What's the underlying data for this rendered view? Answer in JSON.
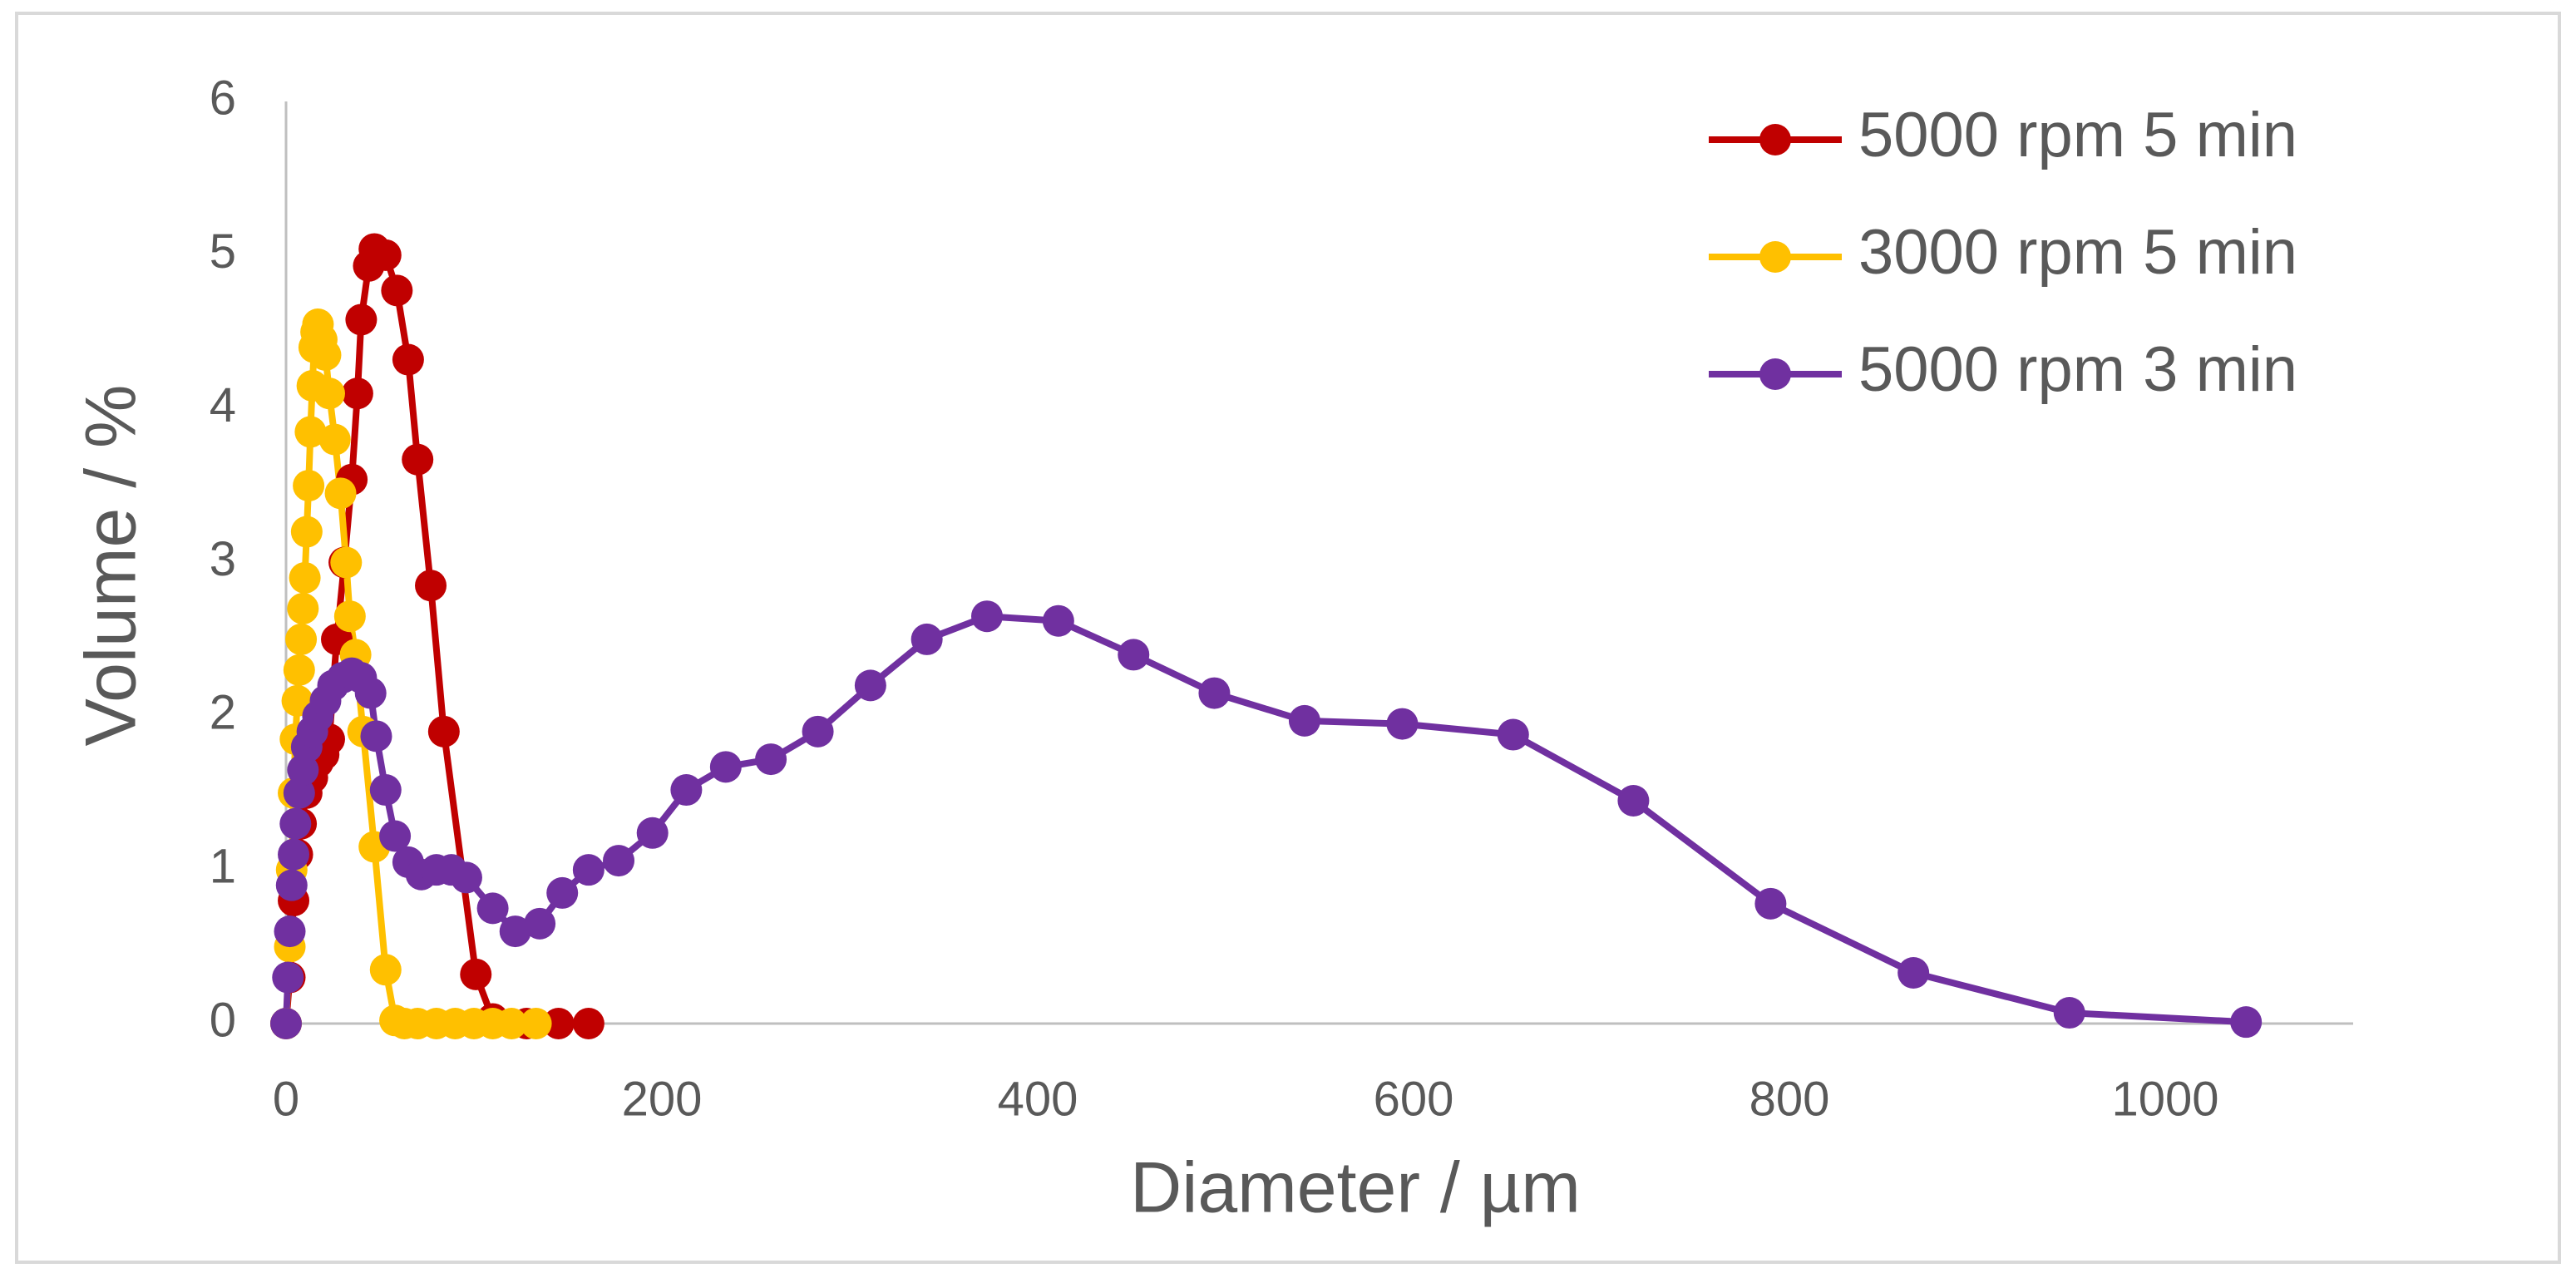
{
  "chart_data": {
    "type": "scatter-line",
    "x_label": "Diameter / µm",
    "y_label": "Volume / %",
    "xlim": [
      0,
      1100
    ],
    "xticks": [
      0,
      200,
      400,
      600,
      800,
      1000
    ],
    "ylim": [
      0,
      6
    ],
    "yticks": [
      0,
      1,
      2,
      3,
      4,
      5,
      6
    ],
    "grid": false,
    "legend": "top-right",
    "series": [
      {
        "name": "5000 rpm 5 min",
        "color": "#c00000",
        "x": [
          0,
          2,
          4,
          6,
          8,
          11,
          14,
          17,
          20,
          23,
          27,
          31,
          35,
          38,
          40,
          44,
          47,
          53,
          59,
          65,
          70,
          77,
          84,
          101,
          110,
          128,
          145,
          161
        ],
        "values": [
          0,
          0.3,
          0.8,
          1.1,
          1.3,
          1.5,
          1.6,
          1.7,
          1.75,
          1.85,
          2.5,
          3.0,
          3.54,
          4.1,
          4.58,
          4.93,
          5.04,
          5.0,
          4.77,
          4.32,
          3.67,
          2.85,
          1.9,
          0.32,
          0.03,
          0,
          0,
          0
        ]
      },
      {
        "name": "3000 rpm 5 min",
        "color": "#ffc000",
        "x": [
          0,
          2,
          3,
          4,
          5,
          6,
          7,
          8,
          9,
          10,
          11,
          12,
          13,
          14,
          15,
          16,
          17,
          19,
          21,
          23,
          26,
          29,
          32,
          34,
          37,
          41,
          47,
          53,
          58,
          63,
          70,
          80,
          90,
          100,
          110,
          120,
          133
        ],
        "values": [
          0,
          0.5,
          1.0,
          1.5,
          1.85,
          2.1,
          2.3,
          2.5,
          2.7,
          2.9,
          3.2,
          3.5,
          3.85,
          4.15,
          4.4,
          4.5,
          4.55,
          4.45,
          4.35,
          4.1,
          3.8,
          3.45,
          3.0,
          2.65,
          2.4,
          1.9,
          1.15,
          0.35,
          0.02,
          0,
          0,
          0,
          0,
          0,
          0,
          0,
          0
        ]
      },
      {
        "name": "5000 rpm 3 min",
        "color": "#7030a0",
        "x": [
          0,
          1,
          2,
          3,
          4,
          5,
          7,
          9,
          11,
          14,
          17,
          21,
          25,
          30,
          35,
          40,
          45,
          48,
          53,
          58,
          65,
          72,
          80,
          88,
          96,
          110,
          122,
          135,
          147,
          161,
          177,
          195,
          213,
          234,
          258,
          283,
          311,
          341,
          373,
          411,
          451,
          494,
          542,
          594,
          653,
          717,
          790,
          866,
          949,
          1043
        ],
        "values": [
          0,
          0.3,
          0.6,
          0.9,
          1.1,
          1.3,
          1.5,
          1.65,
          1.8,
          1.9,
          2.0,
          2.1,
          2.2,
          2.25,
          2.28,
          2.25,
          2.15,
          1.87,
          1.52,
          1.22,
          1.05,
          0.97,
          1.0,
          1.0,
          0.95,
          0.75,
          0.6,
          0.65,
          0.85,
          1.0,
          1.06,
          1.24,
          1.52,
          1.67,
          1.72,
          1.9,
          2.2,
          2.5,
          2.65,
          2.62,
          2.4,
          2.15,
          1.97,
          1.95,
          1.88,
          1.45,
          0.78,
          0.33,
          0.07,
          0.01
        ]
      }
    ]
  }
}
